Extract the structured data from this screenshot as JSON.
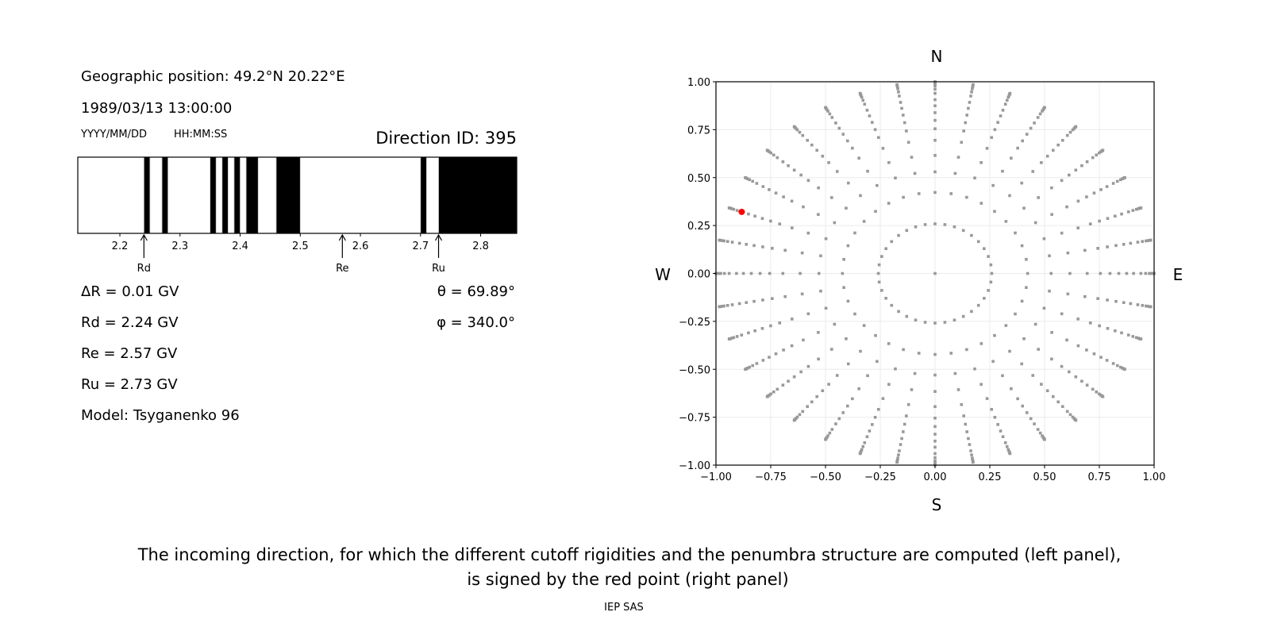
{
  "left_panel": {
    "geo_position": "Geographic position: 49.2°N 20.22°E",
    "datetime": "1989/03/13 13:00:00",
    "date_format": "YYYY/MM/DD",
    "time_format": "HH:MM:SS",
    "direction_id": "Direction ID: 395",
    "delta_r": "ΔR = 0.01 GV",
    "rd": "Rd = 2.24 GV",
    "re": "Re = 2.57 GV",
    "ru": "Ru = 2.73 GV",
    "model": "Model: Tsyganenko 96",
    "theta": "θ = 69.89°",
    "phi": "φ = 340.0°"
  },
  "right_panel": {
    "north": "N",
    "south": "S",
    "west": "W",
    "east": "E"
  },
  "caption": {
    "line1": "The incoming direction, for which the different cutoff rigidities and the penumbra structure are computed (left panel),",
    "line2": "is signed by the red point (right panel)",
    "credit": "IEP SAS"
  },
  "chart_data": [
    {
      "type": "bar",
      "description_kind": "penumbra",
      "xlim": [
        2.13,
        2.86
      ],
      "xticks": [
        2.2,
        2.3,
        2.4,
        2.5,
        2.6,
        2.7,
        2.8
      ],
      "xtick_labels": [
        "2.2",
        "2.3",
        "2.4",
        "2.5",
        "2.6",
        "2.7",
        "2.8"
      ],
      "forbidden_bands": [
        [
          2.24,
          2.25
        ],
        [
          2.27,
          2.28
        ],
        [
          2.35,
          2.36
        ],
        [
          2.37,
          2.38
        ],
        [
          2.39,
          2.4
        ],
        [
          2.41,
          2.43
        ],
        [
          2.46,
          2.5
        ],
        [
          2.7,
          2.71
        ],
        [
          2.73,
          2.86
        ]
      ],
      "band_color": "#000000",
      "markers": [
        {
          "label": "Rd",
          "value": 2.24
        },
        {
          "label": "Re",
          "value": 2.57
        },
        {
          "label": "Ru",
          "value": 2.73
        }
      ]
    },
    {
      "type": "scatter",
      "xlim": [
        -1.0,
        1.0
      ],
      "ylim": [
        -1.0,
        1.0
      ],
      "grid": true,
      "ticks": [
        -1.0,
        -0.75,
        -0.5,
        -0.25,
        0.0,
        0.25,
        0.5,
        0.75,
        1.0
      ],
      "tick_labels": [
        "−1.00",
        "−0.75",
        "−0.50",
        "−0.25",
        "0.00",
        "0.25",
        "0.50",
        "0.75",
        "1.00"
      ],
      "grid_directions": {
        "zenith_deg": [
          15,
          25,
          32,
          38,
          44,
          49,
          53,
          57,
          61,
          65,
          70,
          74,
          78,
          81,
          84,
          87,
          90
        ],
        "azimuth_step_deg": 10,
        "include_zenith_point": true,
        "color": "#999999"
      },
      "selected_direction": {
        "theta_deg": 69.89,
        "phi_deg": 340.0,
        "color": "#ff0000"
      }
    }
  ]
}
